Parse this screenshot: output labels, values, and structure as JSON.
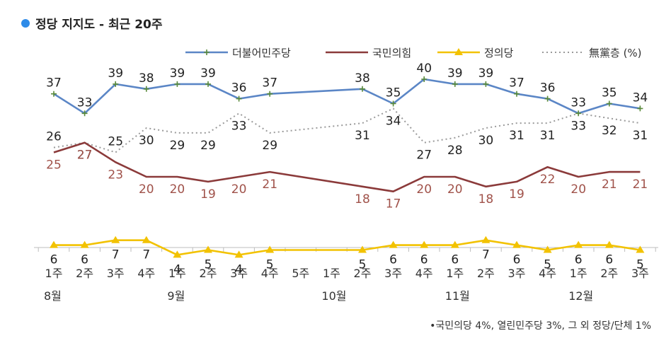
{
  "title": "정당 지지도 - 최근 20주",
  "note": "•국민의당 4%, 열린민주당 3%, 그 외 정당/단체 1%",
  "colors": {
    "title_dot": "#2e8be8",
    "democratic": "#5b86c6",
    "ppp": "#8b3a3a",
    "justice": "#f2c200",
    "independent": "#9a9a9a"
  },
  "chart_data": {
    "type": "line",
    "categories": [
      "1주",
      "2주",
      "3주",
      "4주",
      "1주",
      "2주",
      "3주",
      "4주",
      "5주",
      "1주",
      "2주",
      "3주",
      "4주",
      "1주",
      "2주",
      "3주",
      "4주",
      "1주",
      "2주",
      "3주"
    ],
    "month_labels": [
      {
        "index": 0,
        "label": "8월"
      },
      {
        "index": 4,
        "label": "9월"
      },
      {
        "index": 9,
        "label": "10월"
      },
      {
        "index": 13,
        "label": "11월"
      },
      {
        "index": 17,
        "label": "12월"
      }
    ],
    "series": [
      {
        "name": "더불어민주당",
        "key": "democratic",
        "marker": "plus",
        "values": [
          37,
          33,
          39,
          38,
          39,
          39,
          36,
          37,
          null,
          null,
          38,
          35,
          40,
          39,
          39,
          37,
          36,
          33,
          35,
          34
        ]
      },
      {
        "name": "국민의힘",
        "key": "ppp",
        "marker": "none",
        "values": [
          25,
          27,
          23,
          20,
          20,
          19,
          20,
          21,
          null,
          null,
          18,
          17,
          20,
          20,
          18,
          19,
          22,
          20,
          21,
          21
        ]
      },
      {
        "name": "정의당",
        "key": "justice",
        "marker": "triangle",
        "values": [
          6,
          6,
          7,
          7,
          4,
          5,
          4,
          5,
          null,
          null,
          5,
          6,
          6,
          6,
          7,
          6,
          5,
          6,
          6,
          5
        ]
      },
      {
        "name": "無黨층 (%)",
        "key": "independent",
        "marker": "none",
        "dashed": true,
        "values": [
          26,
          27,
          25,
          30,
          29,
          29,
          33,
          29,
          null,
          null,
          31,
          34,
          27,
          28,
          30,
          31,
          31,
          33,
          32,
          31
        ]
      }
    ],
    "legend_position": "top-right",
    "grid": false
  }
}
